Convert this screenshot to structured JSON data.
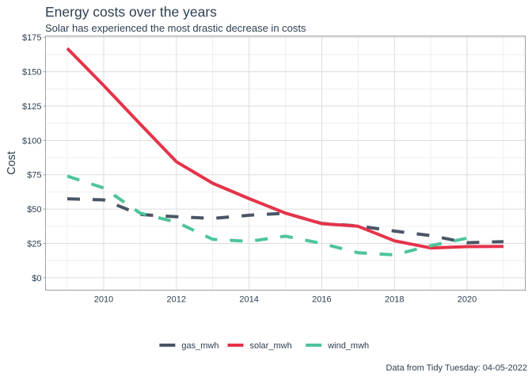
{
  "chart_data": {
    "type": "line",
    "title": "Energy costs over the years",
    "subtitle": "Solar has experienced the most drastic decrease in costs",
    "caption": "Data from Tidy Tuesday: 04-05-2022",
    "xlabel": "",
    "ylabel": "Cost",
    "xlim": [
      2008.4,
      2021.6
    ],
    "ylim": [
      -9,
      176
    ],
    "x_ticks": [
      2010,
      2012,
      2014,
      2016,
      2018,
      2020
    ],
    "x_tick_labels": [
      "2010",
      "2012",
      "2014",
      "2016",
      "2018",
      "2020"
    ],
    "y_ticks": [
      0,
      25,
      50,
      75,
      100,
      125,
      150,
      175
    ],
    "y_tick_labels": [
      "$0",
      "$25",
      "$50",
      "$75",
      "$100",
      "$125",
      "$150",
      "$175"
    ],
    "grid": true,
    "legend_position": "bottom",
    "series": [
      {
        "name": "gas_mwh",
        "color": "#4a5565",
        "dashed": true,
        "x": [
          2009,
          2010,
          2011,
          2012,
          2013,
          2014,
          2015,
          2016,
          2017,
          2018,
          2019,
          2020,
          2021
        ],
        "values": [
          57.5,
          56.7,
          46.1,
          44.4,
          43.2,
          45.5,
          47,
          39.5,
          37.8,
          34,
          30.7,
          25.5,
          26.3
        ]
      },
      {
        "name": "solar_mwh",
        "color": "#e5334a",
        "dashed": false,
        "x": [
          2009,
          2010,
          2011,
          2012,
          2013,
          2014,
          2015,
          2016,
          2017,
          2018,
          2019,
          2020,
          2021
        ],
        "values": [
          167,
          140,
          112,
          84.5,
          68.8,
          57.6,
          47.1,
          39.4,
          37.5,
          26.9,
          21.7,
          22.7,
          22.8
        ]
      },
      {
        "name": "wind_mwh",
        "color": "#4cc59b",
        "dashed": true,
        "x": [
          2009,
          2010,
          2011,
          2012,
          2013,
          2014,
          2015,
          2016,
          2017,
          2018,
          2019,
          2020
        ],
        "values": [
          74,
          65.4,
          47.1,
          40.5,
          28,
          26.5,
          30.3,
          25,
          18.2,
          16.7,
          23.4,
          28.8
        ]
      }
    ]
  }
}
